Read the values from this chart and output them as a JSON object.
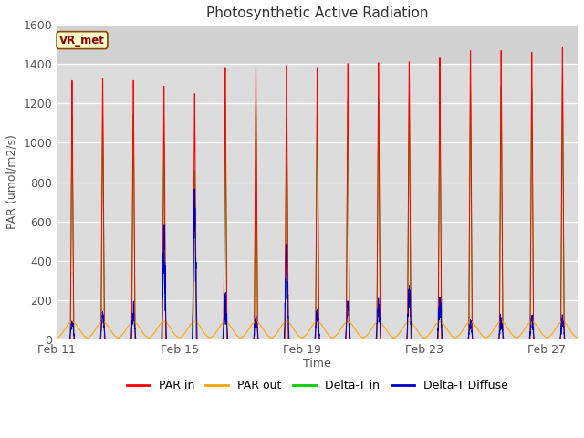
{
  "title": "Photosynthetic Active Radiation",
  "xlabel": "Time",
  "ylabel": "PAR (umol/m2/s)",
  "ylim": [
    0,
    1600
  ],
  "yticks": [
    0,
    200,
    400,
    600,
    800,
    1000,
    1200,
    1400,
    1600
  ],
  "legend_labels": [
    "PAR in",
    "PAR out",
    "Delta-T in",
    "Delta-T Diffuse"
  ],
  "legend_colors": [
    "#ff0000",
    "#ffa500",
    "#00cc00",
    "#0000cc"
  ],
  "watermark_text": "VR_met",
  "title_fontsize": 11,
  "axis_fontsize": 9,
  "x_tick_labels": [
    "Feb 11",
    "Feb 15",
    "Feb 19",
    "Feb 23",
    "Feb 27"
  ],
  "num_days": 17,
  "x_tick_day_positions": [
    0,
    4,
    8,
    12,
    16
  ],
  "par_in_peaks": [
    1380,
    1390,
    1380,
    1350,
    1310,
    1450,
    1440,
    1460,
    1450,
    1470,
    1475,
    1480,
    1500,
    1540,
    1540,
    1530,
    1560
  ],
  "par_out_peaks": [
    90,
    90,
    90,
    90,
    90,
    90,
    90,
    90,
    90,
    90,
    90,
    90,
    90,
    90,
    90,
    90,
    90
  ],
  "delta_t_in_peaks": [
    1190,
    1205,
    1200,
    1050,
    900,
    1250,
    1260,
    1180,
    1270,
    1270,
    1280,
    1295,
    1300,
    1330,
    1350,
    1340,
    1360
  ],
  "delta_t_diff_peaks": [
    100,
    130,
    155,
    530,
    680,
    200,
    110,
    435,
    145,
    175,
    185,
    235,
    200,
    80,
    100,
    110,
    105
  ]
}
